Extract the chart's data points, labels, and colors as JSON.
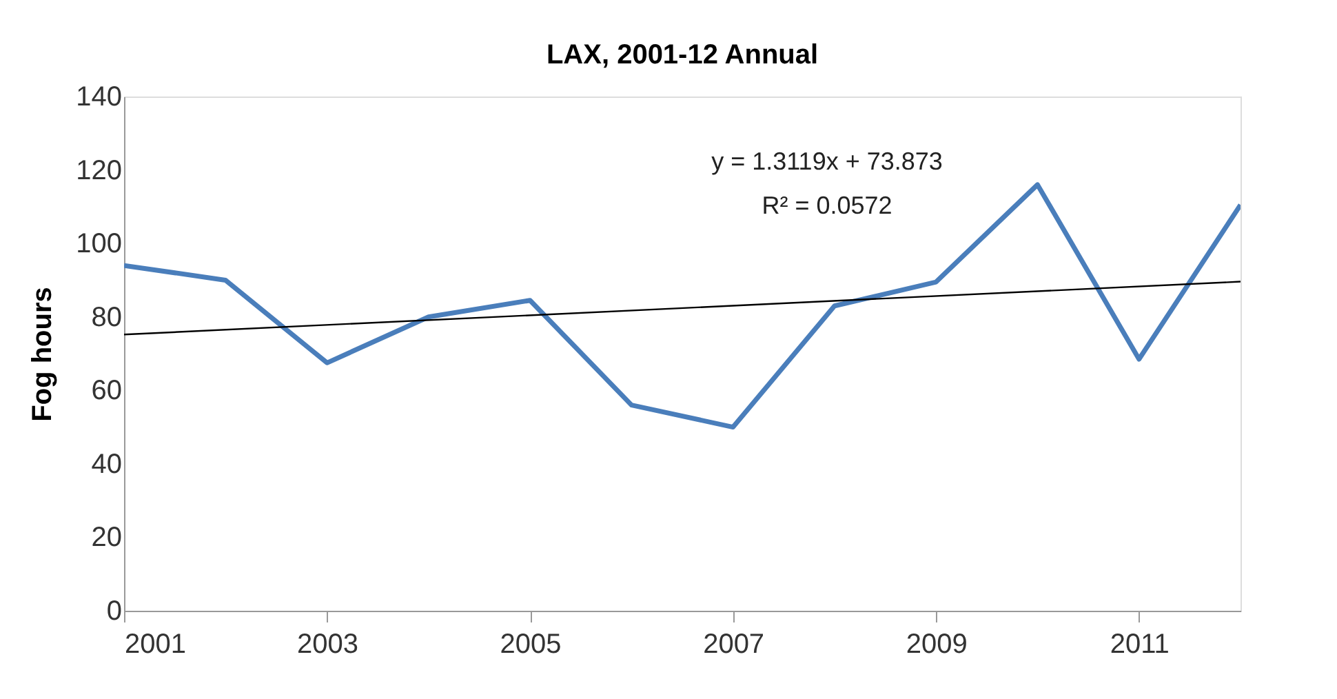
{
  "chart_data": {
    "type": "line",
    "title": "LAX, 2001-12 Annual",
    "ylabel": "Fog hours",
    "x": [
      2001,
      2002,
      2003,
      2004,
      2005,
      2006,
      2007,
      2008,
      2009,
      2010,
      2011,
      2012
    ],
    "series": [
      {
        "color": "#4a7ebb",
        "values": [
          94,
          90,
          67.5,
          80,
          84.5,
          56,
          50,
          83,
          89.5,
          116,
          68.5,
          110.5
        ]
      },
      {
        "type": "line",
        "color": "#000000",
        "x": [
          2001,
          2012
        ],
        "values": [
          75.2,
          89.6
        ]
      }
    ],
    "xlim": [
      2001,
      2012
    ],
    "xticks": [
      2001,
      2003,
      2005,
      2007,
      2009,
      2011
    ],
    "ylim": [
      0,
      140
    ],
    "yticks": [
      0,
      20,
      40,
      60,
      80,
      100,
      120,
      140
    ],
    "grid": false,
    "marker": "none",
    "line_style": "solid",
    "annotations": [
      "y = 1.3119x + 73.873",
      "R² = 0.0572"
    ]
  }
}
